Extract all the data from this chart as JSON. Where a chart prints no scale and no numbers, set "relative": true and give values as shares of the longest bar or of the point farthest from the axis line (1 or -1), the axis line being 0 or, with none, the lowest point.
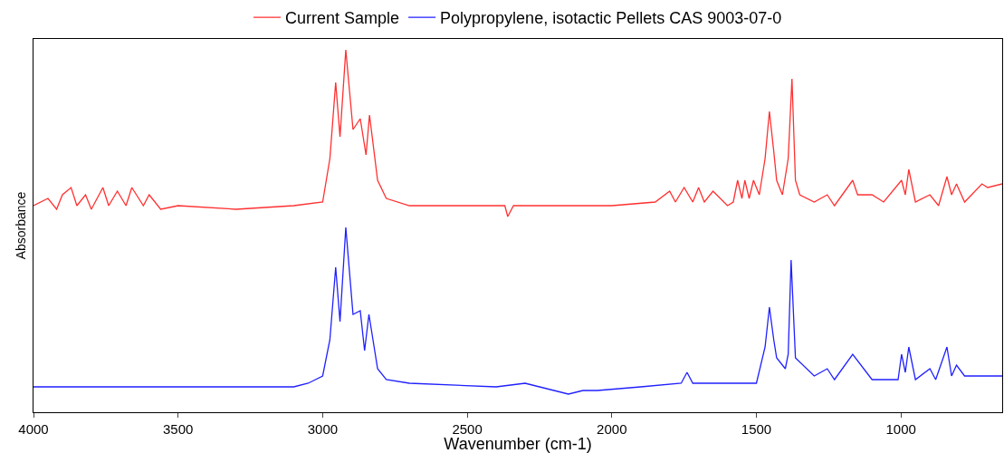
{
  "chart_data": {
    "type": "line",
    "relative": true,
    "xlabel": "Wavenumber (cm-1)",
    "ylabel": "Absorbance",
    "xlim": [
      4000,
      650
    ],
    "xticks": [
      4000,
      3500,
      3000,
      2500,
      2000,
      1500,
      1000
    ],
    "legend": "top",
    "marker": "none",
    "line_style": "solid",
    "series": [
      {
        "name": "Current Sample",
        "color": "#ff3030",
        "x": [
          4000,
          3950,
          3920,
          3900,
          3870,
          3850,
          3820,
          3800,
          3760,
          3740,
          3710,
          3680,
          3660,
          3620,
          3600,
          3560,
          3500,
          3300,
          3100,
          3000,
          2975,
          2955,
          2940,
          2920,
          2895,
          2870,
          2850,
          2838,
          2810,
          2780,
          2700,
          2500,
          2370,
          2360,
          2340,
          2000,
          1850,
          1800,
          1780,
          1750,
          1720,
          1700,
          1680,
          1650,
          1600,
          1580,
          1565,
          1550,
          1540,
          1525,
          1510,
          1490,
          1470,
          1455,
          1440,
          1430,
          1410,
          1390,
          1377,
          1365,
          1350,
          1300,
          1255,
          1230,
          1167,
          1150,
          1100,
          1060,
          998,
          985,
          973,
          950,
          900,
          870,
          841,
          825,
          808,
          780,
          720,
          700,
          650
        ],
        "values": [
          0.57,
          0.59,
          0.56,
          0.6,
          0.62,
          0.57,
          0.6,
          0.56,
          0.62,
          0.57,
          0.61,
          0.57,
          0.62,
          0.57,
          0.6,
          0.56,
          0.57,
          0.56,
          0.57,
          0.58,
          0.7,
          0.91,
          0.76,
          1.0,
          0.78,
          0.81,
          0.71,
          0.82,
          0.64,
          0.59,
          0.57,
          0.57,
          0.57,
          0.54,
          0.57,
          0.57,
          0.58,
          0.61,
          0.58,
          0.62,
          0.58,
          0.62,
          0.58,
          0.61,
          0.57,
          0.58,
          0.64,
          0.59,
          0.64,
          0.59,
          0.64,
          0.6,
          0.7,
          0.83,
          0.72,
          0.64,
          0.6,
          0.7,
          0.92,
          0.64,
          0.6,
          0.58,
          0.6,
          0.57,
          0.64,
          0.6,
          0.6,
          0.58,
          0.64,
          0.6,
          0.67,
          0.58,
          0.6,
          0.57,
          0.65,
          0.6,
          0.63,
          0.58,
          0.63,
          0.62,
          0.63
        ]
      },
      {
        "name": "Polypropylene, isotactic Pellets CAS 9003-07-0",
        "color": "#2020ff",
        "x": [
          4000,
          3500,
          3100,
          3050,
          3000,
          2975,
          2955,
          2940,
          2920,
          2895,
          2870,
          2855,
          2840,
          2810,
          2780,
          2700,
          2400,
          2300,
          2150,
          2100,
          2050,
          1900,
          1760,
          1740,
          1720,
          1500,
          1470,
          1455,
          1440,
          1430,
          1400,
          1390,
          1380,
          1365,
          1300,
          1255,
          1230,
          1167,
          1100,
          1010,
          998,
          985,
          973,
          950,
          900,
          880,
          841,
          825,
          808,
          780,
          700,
          650
        ],
        "values": [
          0.07,
          0.07,
          0.07,
          0.08,
          0.1,
          0.2,
          0.4,
          0.25,
          0.51,
          0.27,
          0.28,
          0.17,
          0.27,
          0.12,
          0.09,
          0.08,
          0.07,
          0.08,
          0.05,
          0.06,
          0.06,
          0.07,
          0.08,
          0.11,
          0.08,
          0.08,
          0.18,
          0.29,
          0.2,
          0.15,
          0.12,
          0.16,
          0.42,
          0.15,
          0.1,
          0.12,
          0.09,
          0.16,
          0.09,
          0.09,
          0.16,
          0.11,
          0.18,
          0.09,
          0.12,
          0.09,
          0.18,
          0.1,
          0.13,
          0.1,
          0.1,
          0.1
        ]
      }
    ]
  }
}
